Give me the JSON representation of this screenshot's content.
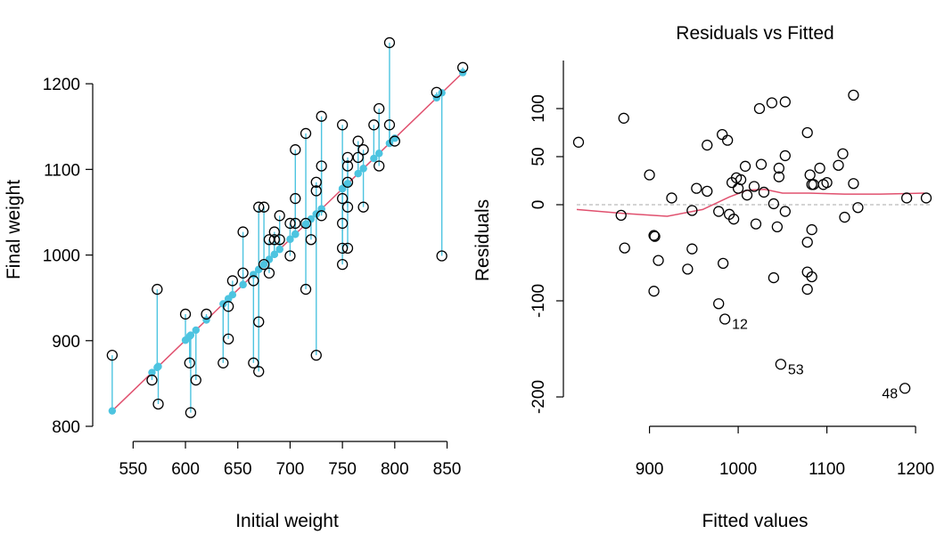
{
  "chart_data": [
    {
      "type": "scatter",
      "title": "",
      "xlabel": "Initial weight",
      "ylabel": "Final weight",
      "xlim": [
        525,
        870
      ],
      "ylim": [
        800,
        1250
      ],
      "xticks": [
        550,
        600,
        650,
        700,
        750,
        800,
        850
      ],
      "yticks": [
        800,
        900,
        1000,
        1100,
        1200
      ],
      "grid": false,
      "colors": {
        "observed": "#000000",
        "fitted": "#4dc4e0",
        "fit_line": "#e0506e"
      },
      "fit_line": {
        "x": [
          530,
          865
        ],
        "y": [
          818,
          1213
        ]
      },
      "points": [
        {
          "x": 530,
          "y": 883
        },
        {
          "x": 568,
          "y": 854
        },
        {
          "x": 573,
          "y": 960
        },
        {
          "x": 574,
          "y": 826
        },
        {
          "x": 600,
          "y": 931
        },
        {
          "x": 604,
          "y": 874
        },
        {
          "x": 605,
          "y": 816
        },
        {
          "x": 610,
          "y": 854
        },
        {
          "x": 620,
          "y": 931
        },
        {
          "x": 636,
          "y": 874
        },
        {
          "x": 641,
          "y": 902
        },
        {
          "x": 641,
          "y": 940
        },
        {
          "x": 645,
          "y": 970
        },
        {
          "x": 655,
          "y": 1027
        },
        {
          "x": 655,
          "y": 979
        },
        {
          "x": 665,
          "y": 874
        },
        {
          "x": 665,
          "y": 970
        },
        {
          "x": 670,
          "y": 1056
        },
        {
          "x": 670,
          "y": 864
        },
        {
          "x": 670,
          "y": 922
        },
        {
          "x": 675,
          "y": 1056
        },
        {
          "x": 675,
          "y": 989
        },
        {
          "x": 680,
          "y": 1018
        },
        {
          "x": 680,
          "y": 979
        },
        {
          "x": 685,
          "y": 1027
        },
        {
          "x": 685,
          "y": 1018
        },
        {
          "x": 690,
          "y": 1046
        },
        {
          "x": 690,
          "y": 1018
        },
        {
          "x": 700,
          "y": 1037
        },
        {
          "x": 700,
          "y": 999
        },
        {
          "x": 705,
          "y": 1123
        },
        {
          "x": 705,
          "y": 1066
        },
        {
          "x": 705,
          "y": 1037
        },
        {
          "x": 715,
          "y": 1142
        },
        {
          "x": 715,
          "y": 960
        },
        {
          "x": 715,
          "y": 1037
        },
        {
          "x": 720,
          "y": 1018
        },
        {
          "x": 725,
          "y": 1085
        },
        {
          "x": 725,
          "y": 1075
        },
        {
          "x": 725,
          "y": 883
        },
        {
          "x": 730,
          "y": 1162
        },
        {
          "x": 730,
          "y": 1104
        },
        {
          "x": 730,
          "y": 1046
        },
        {
          "x": 750,
          "y": 1152
        },
        {
          "x": 750,
          "y": 1066
        },
        {
          "x": 750,
          "y": 1037
        },
        {
          "x": 750,
          "y": 1008
        },
        {
          "x": 750,
          "y": 989
        },
        {
          "x": 755,
          "y": 1114
        },
        {
          "x": 755,
          "y": 1104
        },
        {
          "x": 755,
          "y": 1085
        },
        {
          "x": 755,
          "y": 1056
        },
        {
          "x": 755,
          "y": 1008
        },
        {
          "x": 765,
          "y": 1133
        },
        {
          "x": 765,
          "y": 1114
        },
        {
          "x": 770,
          "y": 1123
        },
        {
          "x": 770,
          "y": 1056
        },
        {
          "x": 780,
          "y": 1152
        },
        {
          "x": 785,
          "y": 1171
        },
        {
          "x": 785,
          "y": 1104
        },
        {
          "x": 795,
          "y": 1248
        },
        {
          "x": 795,
          "y": 1152
        },
        {
          "x": 800,
          "y": 1133
        },
        {
          "x": 840,
          "y": 1190
        },
        {
          "x": 845,
          "y": 999
        },
        {
          "x": 865,
          "y": 1219
        }
      ]
    },
    {
      "type": "scatter",
      "title": "Residuals vs Fitted",
      "xlabel": "Fitted values",
      "ylabel": "Residuals",
      "xlim": [
        818,
        1218
      ],
      "ylim": [
        -200,
        150
      ],
      "xticks": [
        900,
        1000,
        1100,
        1200
      ],
      "yticks": [
        -200,
        -100,
        0,
        50,
        100
      ],
      "grid": false,
      "colors": {
        "points": "#000000",
        "smooth": "#e0506e",
        "zero_line": "#bbbbbb"
      },
      "zero_line": 0,
      "smooth": {
        "x": [
          818,
          870,
          920,
          960,
          990,
          1010,
          1030,
          1050,
          1080,
          1120,
          1160,
          1210
        ],
        "y": [
          -5,
          -9,
          -12,
          -5,
          8,
          15,
          16,
          12,
          12,
          11,
          11,
          12
        ]
      },
      "labeled_points": [
        {
          "x": 985,
          "y": -119,
          "label": "12"
        },
        {
          "x": 1048,
          "y": -166,
          "label": "53"
        },
        {
          "x": 1188,
          "y": -191,
          "label": "48"
        }
      ],
      "points": [
        {
          "x": 820,
          "y": 65
        },
        {
          "x": 868,
          "y": -11
        },
        {
          "x": 871,
          "y": 90
        },
        {
          "x": 872,
          "y": -45
        },
        {
          "x": 900,
          "y": 31
        },
        {
          "x": 905,
          "y": -32
        },
        {
          "x": 905,
          "y": -90
        },
        {
          "x": 906,
          "y": -33
        },
        {
          "x": 910,
          "y": -58
        },
        {
          "x": 925,
          "y": 7
        },
        {
          "x": 943,
          "y": -67
        },
        {
          "x": 948,
          "y": -46
        },
        {
          "x": 948,
          "y": -6
        },
        {
          "x": 953,
          "y": 17
        },
        {
          "x": 965,
          "y": 62
        },
        {
          "x": 965,
          "y": 14
        },
        {
          "x": 978,
          "y": -103
        },
        {
          "x": 978,
          "y": -7
        },
        {
          "x": 982,
          "y": 73
        },
        {
          "x": 983,
          "y": -61
        },
        {
          "x": 988,
          "y": 67
        },
        {
          "x": 990,
          "y": -10
        },
        {
          "x": 993,
          "y": 23
        },
        {
          "x": 995,
          "y": -15
        },
        {
          "x": 998,
          "y": 28
        },
        {
          "x": 1000,
          "y": 17
        },
        {
          "x": 1003,
          "y": 26
        },
        {
          "x": 1008,
          "y": 40
        },
        {
          "x": 1010,
          "y": 10
        },
        {
          "x": 1018,
          "y": 19
        },
        {
          "x": 1020,
          "y": -20
        },
        {
          "x": 1024,
          "y": 100
        },
        {
          "x": 1026,
          "y": 42
        },
        {
          "x": 1029,
          "y": 13
        },
        {
          "x": 1038,
          "y": 106
        },
        {
          "x": 1040,
          "y": 1
        },
        {
          "x": 1040,
          "y": -76
        },
        {
          "x": 1044,
          "y": -23
        },
        {
          "x": 1046,
          "y": 29
        },
        {
          "x": 1046,
          "y": 38
        },
        {
          "x": 1053,
          "y": 107
        },
        {
          "x": 1053,
          "y": -7
        },
        {
          "x": 1053,
          "y": 51
        },
        {
          "x": 1078,
          "y": 75
        },
        {
          "x": 1078,
          "y": -39
        },
        {
          "x": 1078,
          "y": -70
        },
        {
          "x": 1078,
          "y": -88
        },
        {
          "x": 1081,
          "y": 31
        },
        {
          "x": 1083,
          "y": 21
        },
        {
          "x": 1083,
          "y": -26
        },
        {
          "x": 1083,
          "y": -75
        },
        {
          "x": 1085,
          "y": 21
        },
        {
          "x": 1092,
          "y": 38
        },
        {
          "x": 1096,
          "y": 21
        },
        {
          "x": 1100,
          "y": 23
        },
        {
          "x": 1113,
          "y": 41
        },
        {
          "x": 1118,
          "y": 53
        },
        {
          "x": 1120,
          "y": -13
        },
        {
          "x": 1130,
          "y": 114
        },
        {
          "x": 1130,
          "y": 22
        },
        {
          "x": 1135,
          "y": -3
        },
        {
          "x": 1190,
          "y": 7
        },
        {
          "x": 1212,
          "y": 7
        }
      ]
    }
  ]
}
